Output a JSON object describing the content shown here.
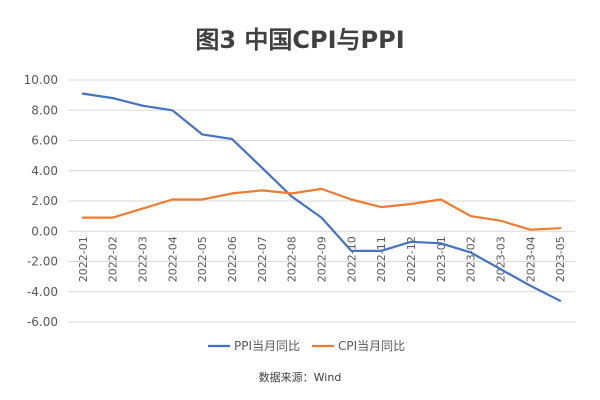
{
  "chart_data": {
    "type": "line",
    "title": "图3 中国CPI与PPI",
    "source": "数据来源：Wind",
    "x": [
      "2022-01",
      "2022-02",
      "2022-03",
      "2022-04",
      "2022-05",
      "2022-06",
      "2022-07",
      "2022-08",
      "2022-09",
      "2022-10",
      "2022-11",
      "2022-12",
      "2023-01",
      "2023-02",
      "2023-03",
      "2023-04",
      "2023-05"
    ],
    "y_ticks": [
      "10.00",
      "8.00",
      "6.00",
      "4.00",
      "2.00",
      "0.00",
      "-2.00",
      "-4.00",
      "-6.00"
    ],
    "ylim": [
      -6,
      10
    ],
    "grid": true,
    "legend_position": "bottom",
    "series": [
      {
        "name": "PPI当月同比",
        "color": "#4472C4",
        "values": [
          9.1,
          8.8,
          8.3,
          8.0,
          6.4,
          6.1,
          4.2,
          2.3,
          0.9,
          -1.3,
          -1.3,
          -0.7,
          -0.8,
          -1.4,
          -2.5,
          -3.6,
          -4.6
        ]
      },
      {
        "name": "CPI当月同比",
        "color": "#ED7D31",
        "values": [
          0.9,
          0.9,
          1.5,
          2.1,
          2.1,
          2.5,
          2.7,
          2.5,
          2.8,
          2.1,
          1.6,
          1.8,
          2.1,
          1.0,
          0.7,
          0.1,
          0.2
        ]
      }
    ]
  }
}
